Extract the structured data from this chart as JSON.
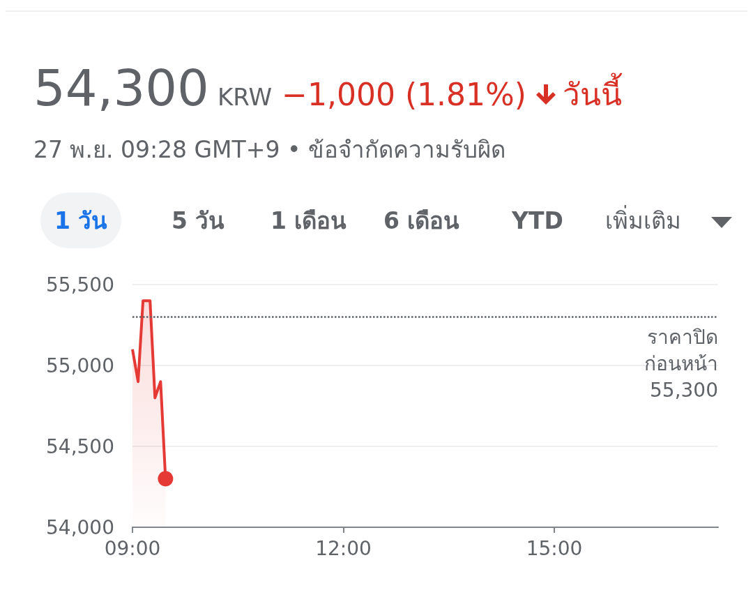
{
  "chart_data": {
    "type": "area",
    "title": "54,300",
    "subtitle": "27 พ.ย. 09:28 GMT+9 • ข้อจำกัดความรับผิด",
    "annotations": [
      "KRW",
      "−1,000 (1.81%)",
      "วันนี้",
      "1 วัน",
      "5 วัน",
      "1 เดือน",
      "6 เดือน",
      "YTD",
      "เพิ่มเติม"
    ],
    "x": [
      9.0,
      9.08,
      9.15,
      9.25,
      9.32,
      9.4,
      9.47
    ],
    "series": [
      {
        "color": "#e53935",
        "values": [
          55100,
          54900,
          55400,
          55400,
          54800,
          54900,
          54300
        ]
      }
    ],
    "xlim": [
      9,
      17.33
    ],
    "xticks": [
      {
        "value": 9,
        "label": "09:00"
      },
      {
        "value": 12,
        "label": "12:00"
      },
      {
        "value": 15,
        "label": "15:00"
      }
    ],
    "ylim": [
      54000,
      55500
    ],
    "yticks": [
      {
        "value": 54000,
        "label": "54,000"
      },
      {
        "value": 54500,
        "label": "54,500"
      },
      {
        "value": 55000,
        "label": "55,000"
      },
      {
        "value": 55500,
        "label": "55,500"
      }
    ],
    "ref_lines": [
      {
        "axis": "y",
        "value": 55300,
        "label": "ราคาปิด\nก่อนหน้า\n55,300",
        "line_style": "dotted",
        "color": "#5f6368"
      }
    ],
    "grid": "y"
  }
}
